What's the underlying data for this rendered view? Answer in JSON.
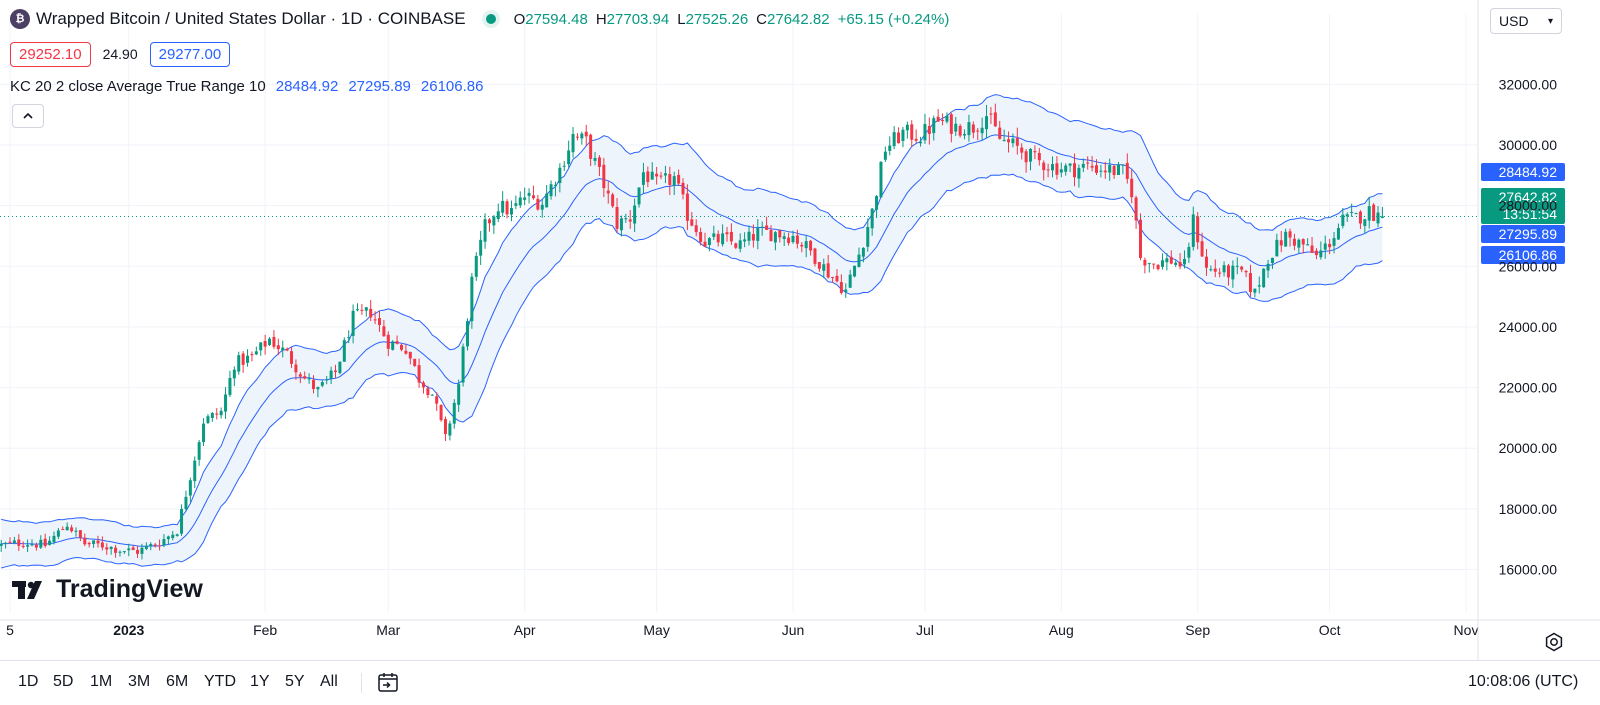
{
  "header": {
    "symbol_icon_glyph": "₿",
    "title": "Wrapped Bitcoin / United States Dollar · 1D · COINBASE",
    "ohlc": {
      "o_label": "O",
      "o_value": "27594.48",
      "h_label": "H",
      "h_value": "27703.94",
      "l_label": "L",
      "l_value": "27525.26",
      "c_label": "C",
      "c_value": "27642.82",
      "change": "+65.15 (+0.24%)"
    },
    "sell_price": "29252.10",
    "spread": "24.90",
    "buy_price": "29277.00",
    "indicator_name": "KC 20 2 close Average True Range 10",
    "indicator_values": [
      "28484.92",
      "27295.89",
      "26106.86"
    ],
    "collapse_icon": "chevron-up-icon"
  },
  "currency": {
    "label": "USD"
  },
  "logo": {
    "text": "TradingView"
  },
  "bottom_bar": {
    "ranges": [
      "1D",
      "5D",
      "1M",
      "3M",
      "6M",
      "YTD",
      "1Y",
      "5Y",
      "All"
    ],
    "clock": "10:08:06 (UTC)"
  },
  "colors": {
    "up": "#089981",
    "down": "#f23645",
    "channel": "#2962ff",
    "channel_fill": "#eef4fc",
    "grid": "#f0f3fa",
    "price_line": "#089981"
  },
  "chart_data": {
    "type": "candlestick",
    "title": "Wrapped Bitcoin / United States Dollar · 1D · COINBASE",
    "ylim": [
      14600,
      33000
    ],
    "y_ticks": [
      16000,
      18000,
      20000,
      22000,
      24000,
      26000,
      28000,
      30000,
      32000
    ],
    "y_tick_labels": [
      "16000.00",
      "18000.00",
      "20000.00",
      "22000.00",
      "24000.00",
      "26000.00",
      "28000.00",
      "30000.00",
      "32000.00"
    ],
    "x_ticks": [
      {
        "label": "5",
        "day": -27
      },
      {
        "label": "2023",
        "day": 0
      },
      {
        "label": "Feb",
        "day": 31
      },
      {
        "label": "Mar",
        "day": 59
      },
      {
        "label": "Apr",
        "day": 90
      },
      {
        "label": "May",
        "day": 120
      },
      {
        "label": "Jun",
        "day": 151
      },
      {
        "label": "Jul",
        "day": 181
      },
      {
        "label": "Aug",
        "day": 212
      },
      {
        "label": "Sep",
        "day": 243
      },
      {
        "label": "Oct",
        "day": 273
      },
      {
        "label": "Nov",
        "day": 304
      }
    ],
    "x_range_days": [
      -29,
      336
    ],
    "last_price": 27642.82,
    "last_price_label": "27642.82",
    "countdown": "13:51:54",
    "kc_labels": [
      "28484.92",
      "27295.89",
      "26106.86"
    ],
    "kc_values": [
      28484.92,
      27295.89,
      26106.86
    ],
    "price_keypoints": [
      {
        "day": -29,
        "price": 16800
      },
      {
        "day": -24,
        "price": 16900
      },
      {
        "day": -19,
        "price": 16800
      },
      {
        "day": -14,
        "price": 17500
      },
      {
        "day": -10,
        "price": 16850
      },
      {
        "day": -6,
        "price": 16800
      },
      {
        "day": -2,
        "price": 16650
      },
      {
        "day": 2,
        "price": 16600
      },
      {
        "day": 7,
        "price": 16900
      },
      {
        "day": 11,
        "price": 17300
      },
      {
        "day": 14,
        "price": 19100
      },
      {
        "day": 17,
        "price": 20900
      },
      {
        "day": 21,
        "price": 21200
      },
      {
        "day": 24,
        "price": 22800
      },
      {
        "day": 28,
        "price": 23000
      },
      {
        "day": 32,
        "price": 23600
      },
      {
        "day": 36,
        "price": 23100
      },
      {
        "day": 40,
        "price": 22300
      },
      {
        "day": 43,
        "price": 21900
      },
      {
        "day": 47,
        "price": 22500
      },
      {
        "day": 51,
        "price": 24300
      },
      {
        "day": 55,
        "price": 24500
      },
      {
        "day": 59,
        "price": 23500
      },
      {
        "day": 63,
        "price": 23300
      },
      {
        "day": 66,
        "price": 22300
      },
      {
        "day": 69,
        "price": 21800
      },
      {
        "day": 72,
        "price": 20300
      },
      {
        "day": 75,
        "price": 22100
      },
      {
        "day": 78,
        "price": 25500
      },
      {
        "day": 81,
        "price": 27300
      },
      {
        "day": 84,
        "price": 28000
      },
      {
        "day": 87,
        "price": 27800
      },
      {
        "day": 90,
        "price": 28300
      },
      {
        "day": 94,
        "price": 28100
      },
      {
        "day": 98,
        "price": 29200
      },
      {
        "day": 101,
        "price": 30300
      },
      {
        "day": 104,
        "price": 30100
      },
      {
        "day": 108,
        "price": 28700
      },
      {
        "day": 111,
        "price": 27400
      },
      {
        "day": 114,
        "price": 27600
      },
      {
        "day": 117,
        "price": 29100
      },
      {
        "day": 120,
        "price": 28700
      },
      {
        "day": 124,
        "price": 28900
      },
      {
        "day": 127,
        "price": 27700
      },
      {
        "day": 131,
        "price": 26800
      },
      {
        "day": 135,
        "price": 26900
      },
      {
        "day": 139,
        "price": 26700
      },
      {
        "day": 143,
        "price": 27100
      },
      {
        "day": 147,
        "price": 27100
      },
      {
        "day": 151,
        "price": 27000
      },
      {
        "day": 155,
        "price": 26500
      },
      {
        "day": 159,
        "price": 25800
      },
      {
        "day": 163,
        "price": 25200
      },
      {
        "day": 166,
        "price": 26400
      },
      {
        "day": 169,
        "price": 27800
      },
      {
        "day": 172,
        "price": 29900
      },
      {
        "day": 176,
        "price": 30400
      },
      {
        "day": 180,
        "price": 30300
      },
      {
        "day": 184,
        "price": 30800
      },
      {
        "day": 188,
        "price": 30600
      },
      {
        "day": 192,
        "price": 30600
      },
      {
        "day": 195,
        "price": 31000
      },
      {
        "day": 198,
        "price": 30200
      },
      {
        "day": 202,
        "price": 29900
      },
      {
        "day": 206,
        "price": 29500
      },
      {
        "day": 210,
        "price": 29300
      },
      {
        "day": 214,
        "price": 29200
      },
      {
        "day": 218,
        "price": 29300
      },
      {
        "day": 222,
        "price": 29200
      },
      {
        "day": 226,
        "price": 29100
      },
      {
        "day": 228,
        "price": 28500
      },
      {
        "day": 230,
        "price": 26300
      },
      {
        "day": 233,
        "price": 26100
      },
      {
        "day": 237,
        "price": 26200
      },
      {
        "day": 240,
        "price": 26000
      },
      {
        "day": 242,
        "price": 27500
      },
      {
        "day": 245,
        "price": 25900
      },
      {
        "day": 249,
        "price": 25800
      },
      {
        "day": 253,
        "price": 25800
      },
      {
        "day": 256,
        "price": 25100
      },
      {
        "day": 259,
        "price": 26300
      },
      {
        "day": 263,
        "price": 27000
      },
      {
        "day": 267,
        "price": 26700
      },
      {
        "day": 270,
        "price": 26300
      },
      {
        "day": 273,
        "price": 26800
      },
      {
        "day": 276,
        "price": 27500
      },
      {
        "day": 279,
        "price": 27600
      },
      {
        "day": 282,
        "price": 27800
      },
      {
        "day": 285,
        "price": 27642.82
      }
    ]
  }
}
